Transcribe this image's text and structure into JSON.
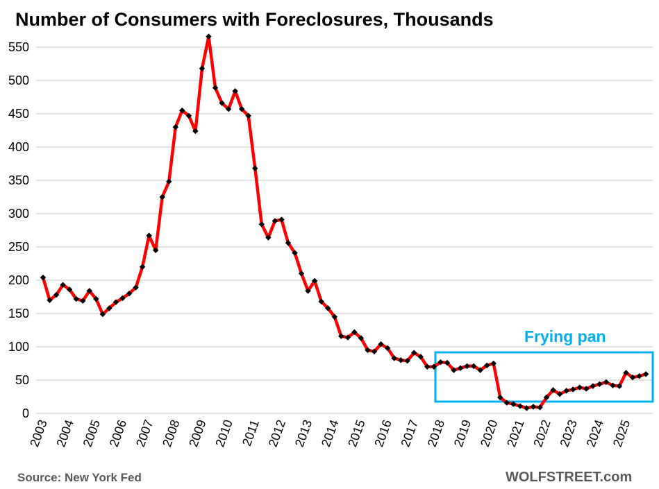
{
  "chart_data": {
    "type": "line",
    "title": "Number  of Consumers with Foreclosures, Thousands",
    "xlabel": "",
    "ylabel": "",
    "ylim": [
      0,
      550
    ],
    "yticks": [
      "0",
      "50",
      "100",
      "150",
      "200",
      "250",
      "300",
      "350",
      "400",
      "450",
      "500",
      "550"
    ],
    "xticks": [
      "2003",
      "2004",
      "2005",
      "2006",
      "2007",
      "2008",
      "2009",
      "2010",
      "2011",
      "2012",
      "2013",
      "2014",
      "2015",
      "2016",
      "2017",
      "2018",
      "2019",
      "2020",
      "2021",
      "2022",
      "2023",
      "2024",
      "2025"
    ],
    "grid": true,
    "frequency": "quarterly",
    "start": "2003 Q1",
    "series": [
      {
        "name": "Consumers with foreclosures",
        "color": "#ff0000",
        "marker_color": "#000000",
        "values": [
          204,
          170,
          178,
          193,
          186,
          172,
          169,
          184,
          172,
          149,
          158,
          167,
          173,
          180,
          189,
          220,
          267,
          245,
          325,
          348,
          430,
          455,
          447,
          424,
          518,
          566,
          489,
          466,
          457,
          484,
          457,
          447,
          368,
          284,
          264,
          289,
          291,
          256,
          241,
          210,
          184,
          199,
          168,
          158,
          145,
          116,
          114,
          122,
          113,
          95,
          93,
          104,
          98,
          83,
          80,
          79,
          91,
          85,
          70,
          70,
          77,
          76,
          65,
          68,
          71,
          71,
          65,
          72,
          75,
          24,
          16,
          14,
          11,
          8,
          10,
          9,
          24,
          35,
          29,
          34,
          36,
          39,
          37,
          41,
          44,
          47,
          42,
          41,
          61,
          54,
          56,
          59
        ]
      }
    ],
    "annotations": [
      {
        "text": "Frying pan",
        "color": "#00b0f0",
        "range": [
          "2018 Q1",
          "2025 Q4"
        ]
      }
    ],
    "source": "Source: New York Fed",
    "brand": "WOLFSTREET.com"
  }
}
